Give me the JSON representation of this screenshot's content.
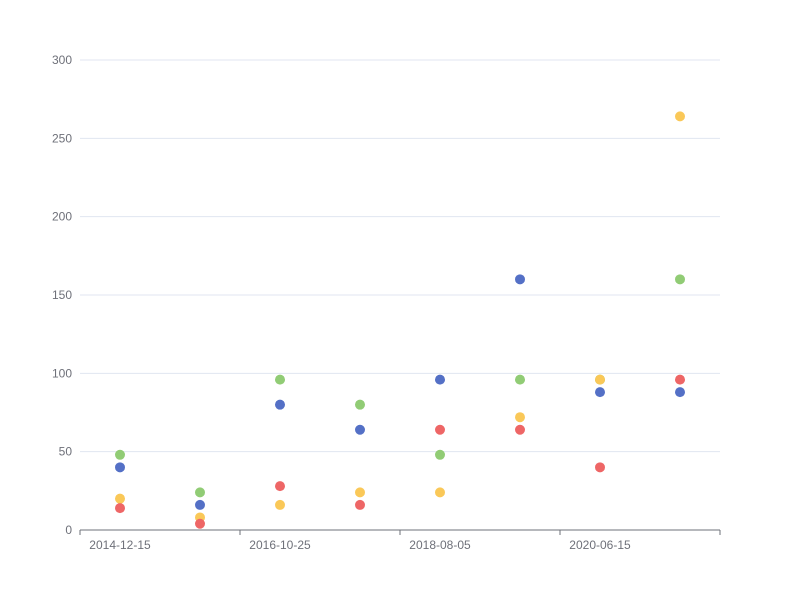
{
  "chart_data": {
    "type": "scatter",
    "x_categories": [
      "2014-12-15",
      "",
      "2016-10-25",
      "",
      "2018-08-05",
      "",
      "2020-06-15",
      ""
    ],
    "x_tick_labels": [
      "2014-12-15",
      "2016-10-25",
      "2018-08-05",
      "2020-06-15"
    ],
    "y_ticks": [
      0,
      50,
      100,
      150,
      200,
      250,
      300
    ],
    "ylim": [
      0,
      300
    ],
    "grid": true,
    "legend": "none",
    "series": [
      {
        "color": "#5470c6",
        "values": [
          40,
          16,
          80,
          64,
          96,
          160,
          88,
          88
        ]
      },
      {
        "color": "#91cc75",
        "values": [
          48,
          24,
          96,
          80,
          48,
          96,
          96,
          160
        ]
      },
      {
        "color": "#fac858",
        "values": [
          20,
          8,
          16,
          24,
          24,
          72,
          96,
          264
        ]
      },
      {
        "color": "#ee6666",
        "values": [
          14,
          4,
          28,
          16,
          64,
          64,
          40,
          96
        ]
      }
    ]
  }
}
